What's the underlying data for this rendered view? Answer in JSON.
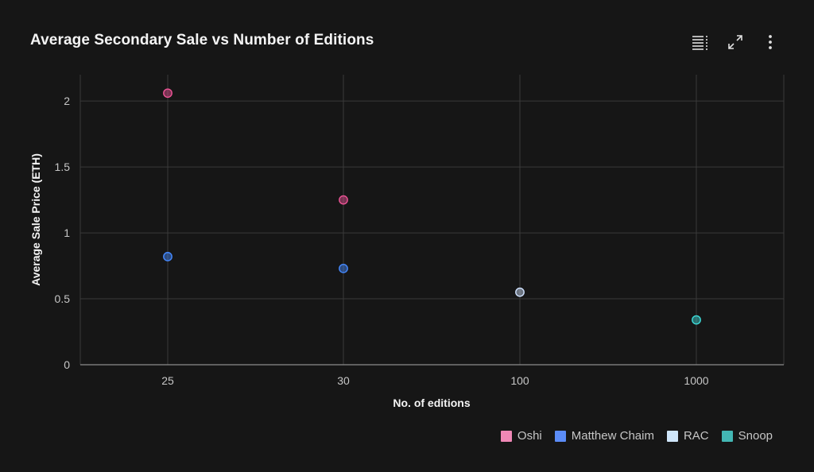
{
  "chart_data": {
    "type": "scatter",
    "title": "Average Secondary Sale vs Number of Editions",
    "xlabel": "No. of editions",
    "ylabel": "Average Sale Price (ETH)",
    "x_axis_type": "categorical",
    "categories": [
      "25",
      "30",
      "100",
      "1000"
    ],
    "ylim": [
      0,
      2.2
    ],
    "y_ticks": [
      0,
      0.5,
      1,
      1.5,
      2
    ],
    "y_tick_labels": [
      "0",
      "0.5",
      "1",
      "1.5",
      "2"
    ],
    "grid": true,
    "legend_position": "bottom-right",
    "series": [
      {
        "name": "Oshi",
        "color": "#ee5396",
        "points": [
          {
            "x": "25",
            "y": 2.06
          },
          {
            "x": "30",
            "y": 1.25
          }
        ]
      },
      {
        "name": "Matthew Chaim",
        "color": "#4589ff",
        "points": [
          {
            "x": "25",
            "y": 0.82
          },
          {
            "x": "30",
            "y": 0.73
          }
        ]
      },
      {
        "name": "RAC",
        "color": "#d0e2ff",
        "points": [
          {
            "x": "100",
            "y": 0.55
          }
        ]
      },
      {
        "name": "Snoop",
        "color": "#3ddbd9",
        "points": [
          {
            "x": "1000",
            "y": 0.34
          }
        ]
      }
    ]
  },
  "legend": {
    "items": [
      {
        "label": "Oshi",
        "color": "#f088b6"
      },
      {
        "label": "Matthew Chaim",
        "color": "#5b8cf7"
      },
      {
        "label": "RAC",
        "color": "#cfe6fa"
      },
      {
        "label": "Snoop",
        "color": "#43b7b4"
      }
    ]
  },
  "toolbar": {
    "icons": [
      "table-view-icon",
      "expand-icon",
      "overflow-menu-icon"
    ]
  }
}
